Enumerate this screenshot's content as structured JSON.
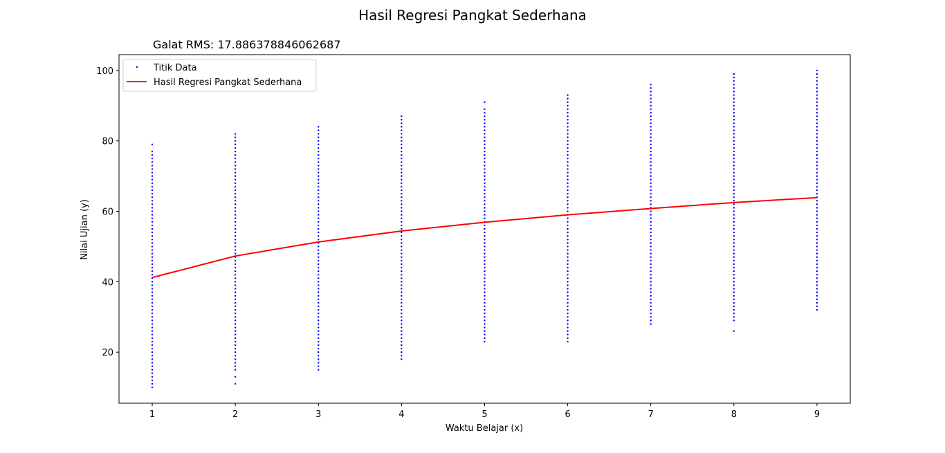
{
  "chart_data": {
    "type": "scatter",
    "title": "Hasil Regresi Pangkat Sederhana",
    "subtitle": "Galat RMS: 17.886378846062687",
    "xlabel": "Waktu Belajar (x)",
    "ylabel": "Nilai Ujian (y)",
    "xlim": [
      0.6,
      9.4
    ],
    "ylim": [
      5.5,
      104.5
    ],
    "x_ticks": [
      1,
      2,
      3,
      4,
      5,
      6,
      7,
      8,
      9
    ],
    "y_ticks": [
      20,
      40,
      60,
      80,
      100
    ],
    "grid": false,
    "legend_position": "top-left",
    "series": [
      {
        "name": "Titik Data",
        "kind": "scatter",
        "color": "#0000ff",
        "columns": [
          {
            "x": 1,
            "min": 10,
            "max": 77,
            "extra": [
              79
            ]
          },
          {
            "x": 2,
            "min": 15,
            "max": 82,
            "extra": [
              11,
              13
            ]
          },
          {
            "x": 3,
            "min": 16,
            "max": 84,
            "extra": [
              15
            ]
          },
          {
            "x": 4,
            "min": 18,
            "max": 87,
            "extra": []
          },
          {
            "x": 5,
            "min": 23,
            "max": 89,
            "extra": [
              91
            ]
          },
          {
            "x": 6,
            "min": 23,
            "max": 93,
            "extra": []
          },
          {
            "x": 7,
            "min": 28,
            "max": 96,
            "extra": []
          },
          {
            "x": 8,
            "min": 29,
            "max": 99,
            "extra": [
              26
            ]
          },
          {
            "x": 9,
            "min": 32,
            "max": 100,
            "extra": []
          }
        ]
      },
      {
        "name": "Hasil Regresi Pangkat Sederhana",
        "kind": "line",
        "color": "#ff0000",
        "x": [
          1,
          2,
          3,
          4,
          5,
          6,
          7,
          8,
          9
        ],
        "y": [
          41.2,
          47.3,
          51.3,
          54.4,
          56.9,
          59.0,
          60.8,
          62.5,
          63.9
        ]
      }
    ]
  }
}
